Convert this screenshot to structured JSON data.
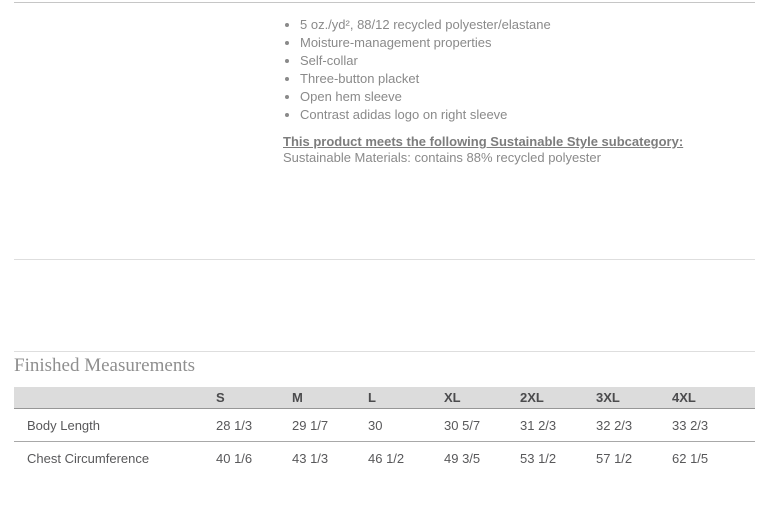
{
  "colors": {
    "body_text": "#8a8a8a",
    "heading_text": "#7d7d7d",
    "table_text": "#58585a",
    "table_header_text": "#4b4b4d",
    "table_header_bg": "#dcdcdc",
    "divider": "#dedede",
    "section_title_text": "#8f8f8f"
  },
  "product": {
    "features": [
      "5 oz./yd², 88/12 recycled polyester/elastane",
      "Moisture-management properties",
      "Self-collar",
      "Three-button placket",
      "Open hem sleeve",
      "Contrast adidas logo on right sleeve"
    ],
    "sustainable_heading": "This product meets the following Sustainable Style subcategory:",
    "sustainable_text": "Sustainable Materials: contains 88% recycled polyester"
  },
  "measurements": {
    "title": "Finished Measurements",
    "columns": [
      "S",
      "M",
      "L",
      "XL",
      "2XL",
      "3XL",
      "4XL"
    ],
    "rows": [
      {
        "label": "Body Length",
        "values": [
          "28 1/3",
          "29 1/7",
          "30",
          "30 5/7",
          "31 2/3",
          "32 2/3",
          "33 2/3"
        ]
      },
      {
        "label": "Chest Circumference",
        "values": [
          "40 1/6",
          "43 1/3",
          "46 1/2",
          "49 3/5",
          "53 1/2",
          "57 1/2",
          "62 1/5"
        ]
      }
    ]
  }
}
